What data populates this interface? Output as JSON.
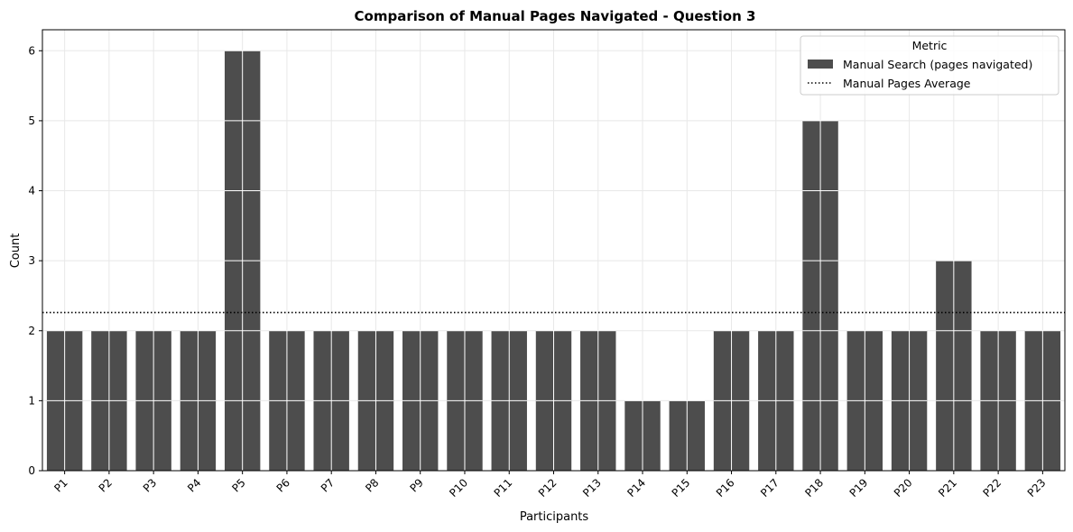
{
  "chart_data": {
    "type": "bar",
    "title": "Comparison of Manual Pages Navigated - Question 3",
    "xlabel": "Participants",
    "ylabel": "Count",
    "ylim": [
      0,
      6.3
    ],
    "yticks": [
      0,
      1,
      2,
      3,
      4,
      5,
      6
    ],
    "categories": [
      "P1",
      "P2",
      "P3",
      "P4",
      "P5",
      "P6",
      "P7",
      "P8",
      "P9",
      "P10",
      "P11",
      "P12",
      "P13",
      "P14",
      "P15",
      "P16",
      "P17",
      "P18",
      "P19",
      "P20",
      "P21",
      "P22",
      "P23"
    ],
    "series": [
      {
        "name": "Manual Search (pages navigated)",
        "color": "#4d4d4d",
        "values": [
          2,
          2,
          2,
          2,
          6,
          2,
          2,
          2,
          2,
          2,
          2,
          2,
          2,
          1,
          1,
          2,
          2,
          5,
          2,
          2,
          3,
          2,
          2
        ]
      }
    ],
    "reference_lines": [
      {
        "name": "Manual Pages Average",
        "value": 2.26,
        "style": "dotted",
        "color": "#000000"
      }
    ],
    "legend": {
      "title": "Metric",
      "position": "top-right"
    },
    "grid": true
  }
}
